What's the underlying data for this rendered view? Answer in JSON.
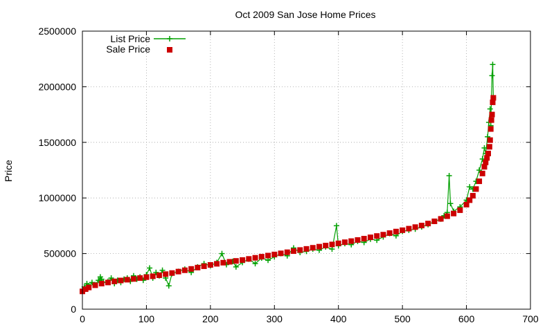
{
  "chart_data": {
    "type": "scatter",
    "title": "Oct 2009 San Jose Home Prices",
    "xlabel": "",
    "ylabel": "Price",
    "xlim": [
      0,
      700
    ],
    "ylim": [
      0,
      2500000
    ],
    "xticks": [
      0,
      100,
      200,
      300,
      400,
      500,
      600,
      700
    ],
    "yticks": [
      0,
      500000,
      1000000,
      1500000,
      2000000,
      2500000
    ],
    "xtick_labels": [
      "0",
      "100",
      "200",
      "300",
      "400",
      "500",
      "600",
      "700"
    ],
    "ytick_labels": [
      "0",
      "500000",
      "1000000",
      "1500000",
      "2000000",
      "2500000"
    ],
    "grid": true,
    "legend_position": "top-left",
    "series": [
      {
        "name": "List Price",
        "marker": "plus",
        "color": "#00a000",
        "x": [
          0,
          3,
          7,
          10,
          15,
          20,
          25,
          28,
          30,
          33,
          40,
          45,
          50,
          55,
          60,
          65,
          70,
          75,
          80,
          85,
          90,
          95,
          100,
          105,
          110,
          115,
          120,
          125,
          130,
          135,
          140,
          150,
          160,
          170,
          180,
          190,
          200,
          210,
          218,
          225,
          235,
          240,
          250,
          260,
          270,
          280,
          290,
          300,
          310,
          320,
          330,
          340,
          350,
          360,
          370,
          380,
          390,
          397,
          400,
          410,
          420,
          430,
          440,
          450,
          460,
          470,
          480,
          490,
          500,
          510,
          520,
          530,
          540,
          550,
          560,
          565,
          570,
          573,
          575,
          580,
          590,
          600,
          605,
          610,
          615,
          620,
          625,
          628,
          630,
          633,
          635,
          637,
          638,
          640,
          641,
          642
        ],
        "values": [
          165000,
          200000,
          230000,
          210000,
          240000,
          220000,
          260000,
          290000,
          270000,
          240000,
          250000,
          280000,
          230000,
          260000,
          240000,
          270000,
          280000,
          250000,
          300000,
          270000,
          290000,
          260000,
          310000,
          370000,
          280000,
          330000,
          300000,
          350000,
          280000,
          210000,
          320000,
          340000,
          360000,
          330000,
          380000,
          410000,
          390000,
          420000,
          500000,
          400000,
          430000,
          380000,
          420000,
          450000,
          410000,
          460000,
          440000,
          470000,
          500000,
          480000,
          550000,
          510000,
          520000,
          540000,
          530000,
          560000,
          540000,
          750000,
          570000,
          590000,
          580000,
          610000,
          600000,
          630000,
          620000,
          650000,
          680000,
          660000,
          700000,
          710000,
          720000,
          740000,
          760000,
          790000,
          810000,
          840000,
          870000,
          1200000,
          950000,
          880000,
          920000,
          980000,
          1100000,
          1080000,
          1150000,
          1250000,
          1350000,
          1450000,
          1400000,
          1550000,
          1680000,
          1800000,
          1650000,
          2100000,
          2200000,
          1900000
        ]
      },
      {
        "name": "Sale Price",
        "marker": "square",
        "color": "#cc0000",
        "x": [
          0,
          5,
          10,
          20,
          30,
          40,
          50,
          60,
          70,
          80,
          90,
          100,
          110,
          120,
          130,
          140,
          150,
          160,
          170,
          180,
          190,
          200,
          210,
          220,
          230,
          240,
          250,
          260,
          270,
          280,
          290,
          300,
          310,
          320,
          330,
          340,
          350,
          360,
          370,
          380,
          390,
          400,
          410,
          420,
          430,
          440,
          450,
          460,
          470,
          480,
          490,
          500,
          510,
          520,
          530,
          540,
          550,
          560,
          570,
          580,
          590,
          600,
          605,
          610,
          615,
          620,
          625,
          628,
          630,
          632,
          634,
          636,
          637,
          638,
          639,
          640,
          641,
          642
        ],
        "values": [
          160000,
          180000,
          195000,
          215000,
          230000,
          240000,
          250000,
          258000,
          265000,
          272000,
          280000,
          288000,
          296000,
          305000,
          315000,
          325000,
          338000,
          350000,
          362000,
          374000,
          386000,
          398000,
          408000,
          418000,
          426000,
          434000,
          442000,
          452000,
          462000,
          472000,
          482000,
          492000,
          502000,
          512000,
          522000,
          532000,
          542000,
          552000,
          562000,
          572000,
          582000,
          592000,
          602000,
          612000,
          622000,
          634000,
          646000,
          658000,
          670000,
          684000,
          698000,
          710000,
          724000,
          738000,
          752000,
          770000,
          790000,
          812000,
          836000,
          860000,
          890000,
          940000,
          980000,
          1020000,
          1080000,
          1150000,
          1220000,
          1280000,
          1320000,
          1360000,
          1400000,
          1460000,
          1520000,
          1620000,
          1700000,
          1750000,
          1860000,
          1900000
        ]
      }
    ]
  }
}
